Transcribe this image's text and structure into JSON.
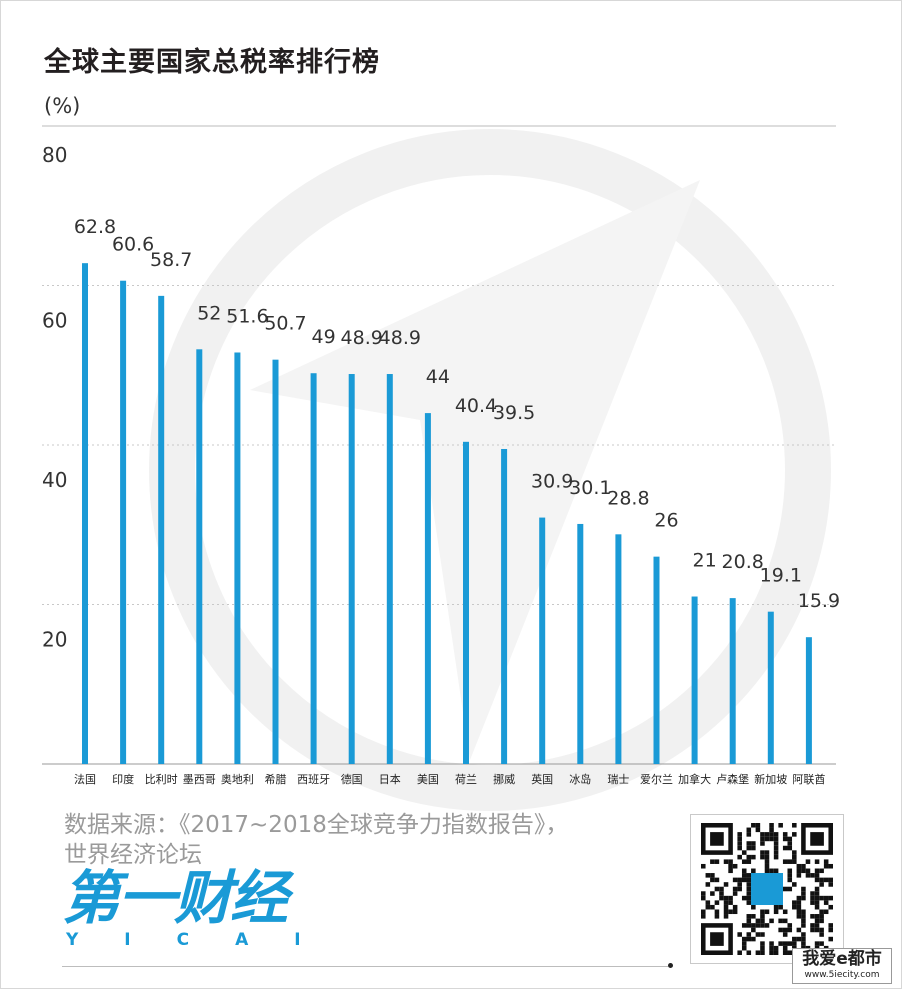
{
  "title": "全球主要国家总税率排行榜",
  "unit": "(%)",
  "source_line1": "数据来源：《2017~2018全球竞争力指数报告》，",
  "source_line2": "世界经济论坛",
  "logo": {
    "main": "第一财经",
    "sub": "YICAI"
  },
  "site": {
    "name": "我爱e都市",
    "url": "www.5iecity.com"
  },
  "colors": {
    "bar": "#1a9ad6",
    "grid": "#c8c8c8",
    "text": "#333333",
    "watermark": "#f2f2f2"
  },
  "chart_data": {
    "type": "bar",
    "title": "全球主要国家总税率排行榜",
    "ylabel": "(%)",
    "ylim": [
      0,
      80
    ],
    "yticks": [
      20,
      40,
      60,
      80
    ],
    "grid": true,
    "categories": [
      "法国",
      "印度",
      "比利时",
      "墨西哥",
      "奥地利",
      "希腊",
      "西班牙",
      "德国",
      "日本",
      "美国",
      "荷兰",
      "挪威",
      "英国",
      "冰岛",
      "瑞士",
      "爱尔兰",
      "加拿大",
      "卢森堡",
      "新加坡",
      "阿联酋"
    ],
    "values": [
      62.8,
      60.6,
      58.7,
      52,
      51.6,
      50.7,
      49,
      48.9,
      48.9,
      44,
      40.4,
      39.5,
      30.9,
      30.1,
      28.8,
      26,
      21,
      20.8,
      19.1,
      15.9
    ]
  }
}
